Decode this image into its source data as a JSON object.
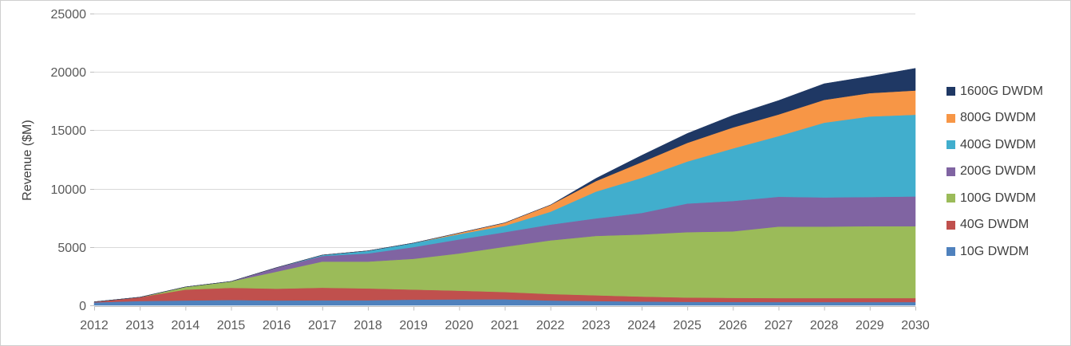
{
  "chart_data": {
    "type": "area",
    "stacked": true,
    "title": "",
    "xlabel": "",
    "ylabel": "Revenue ($M)",
    "ylim": [
      0,
      25000
    ],
    "yticks": [
      0,
      5000,
      10000,
      15000,
      20000,
      25000
    ],
    "grid": "horizontal",
    "legend_position": "right",
    "x": [
      2012,
      2013,
      2014,
      2015,
      2016,
      2017,
      2018,
      2019,
      2020,
      2021,
      2022,
      2023,
      2024,
      2025,
      2026,
      2027,
      2028,
      2029,
      2030
    ],
    "series": [
      {
        "name": "10G DWDM",
        "color": "#4F81BD",
        "values": [
          250,
          370,
          420,
          460,
          420,
          440,
          440,
          490,
          510,
          520,
          420,
          370,
          330,
          300,
          290,
          280,
          280,
          280,
          280
        ]
      },
      {
        "name": "40G DWDM",
        "color": "#C0504D",
        "values": [
          50,
          330,
          925,
          1040,
          1010,
          1070,
          1010,
          860,
          750,
          620,
          550,
          490,
          420,
          370,
          350,
          340,
          340,
          340,
          340
        ]
      },
      {
        "name": "100G DWDM",
        "color": "#9BBB59",
        "values": [
          0,
          0,
          230,
          550,
          1460,
          2240,
          2300,
          2640,
          3190,
          3880,
          4600,
          5090,
          5320,
          5600,
          5700,
          6130,
          6130,
          6160,
          6160
        ]
      },
      {
        "name": "200G DWDM",
        "color": "#8064A2",
        "values": [
          0,
          0,
          0,
          0,
          350,
          480,
          700,
          1000,
          1200,
          1250,
          1350,
          1500,
          1850,
          2450,
          2600,
          2550,
          2500,
          2500,
          2550
        ]
      },
      {
        "name": "400G DWDM",
        "color": "#41AECD",
        "values": [
          0,
          0,
          0,
          0,
          0,
          80,
          220,
          350,
          450,
          550,
          1100,
          2300,
          3000,
          3600,
          4500,
          5200,
          6400,
          6900,
          7000
        ]
      },
      {
        "name": "800G DWDM",
        "color": "#F79646",
        "values": [
          0,
          0,
          0,
          0,
          0,
          0,
          0,
          0,
          100,
          250,
          580,
          900,
          1350,
          1600,
          1800,
          1850,
          1950,
          2000,
          2080
        ]
      },
      {
        "name": "1600G DWDM",
        "color": "#1F3864",
        "values": [
          0,
          0,
          0,
          0,
          0,
          0,
          0,
          0,
          0,
          0,
          0,
          230,
          580,
          810,
          1040,
          1200,
          1390,
          1440,
          1900
        ]
      }
    ],
    "legend_items": [
      "1600G DWDM",
      "800G DWDM",
      "400G DWDM",
      "200G DWDM",
      "100G DWDM",
      "40G DWDM",
      "10G DWDM"
    ]
  },
  "colors": {
    "gridline": "#D9D9D9",
    "axis_line": "#BFBFBF",
    "tick_label": "#595959",
    "axis_title": "#404040",
    "background": "#FFFFFF"
  }
}
